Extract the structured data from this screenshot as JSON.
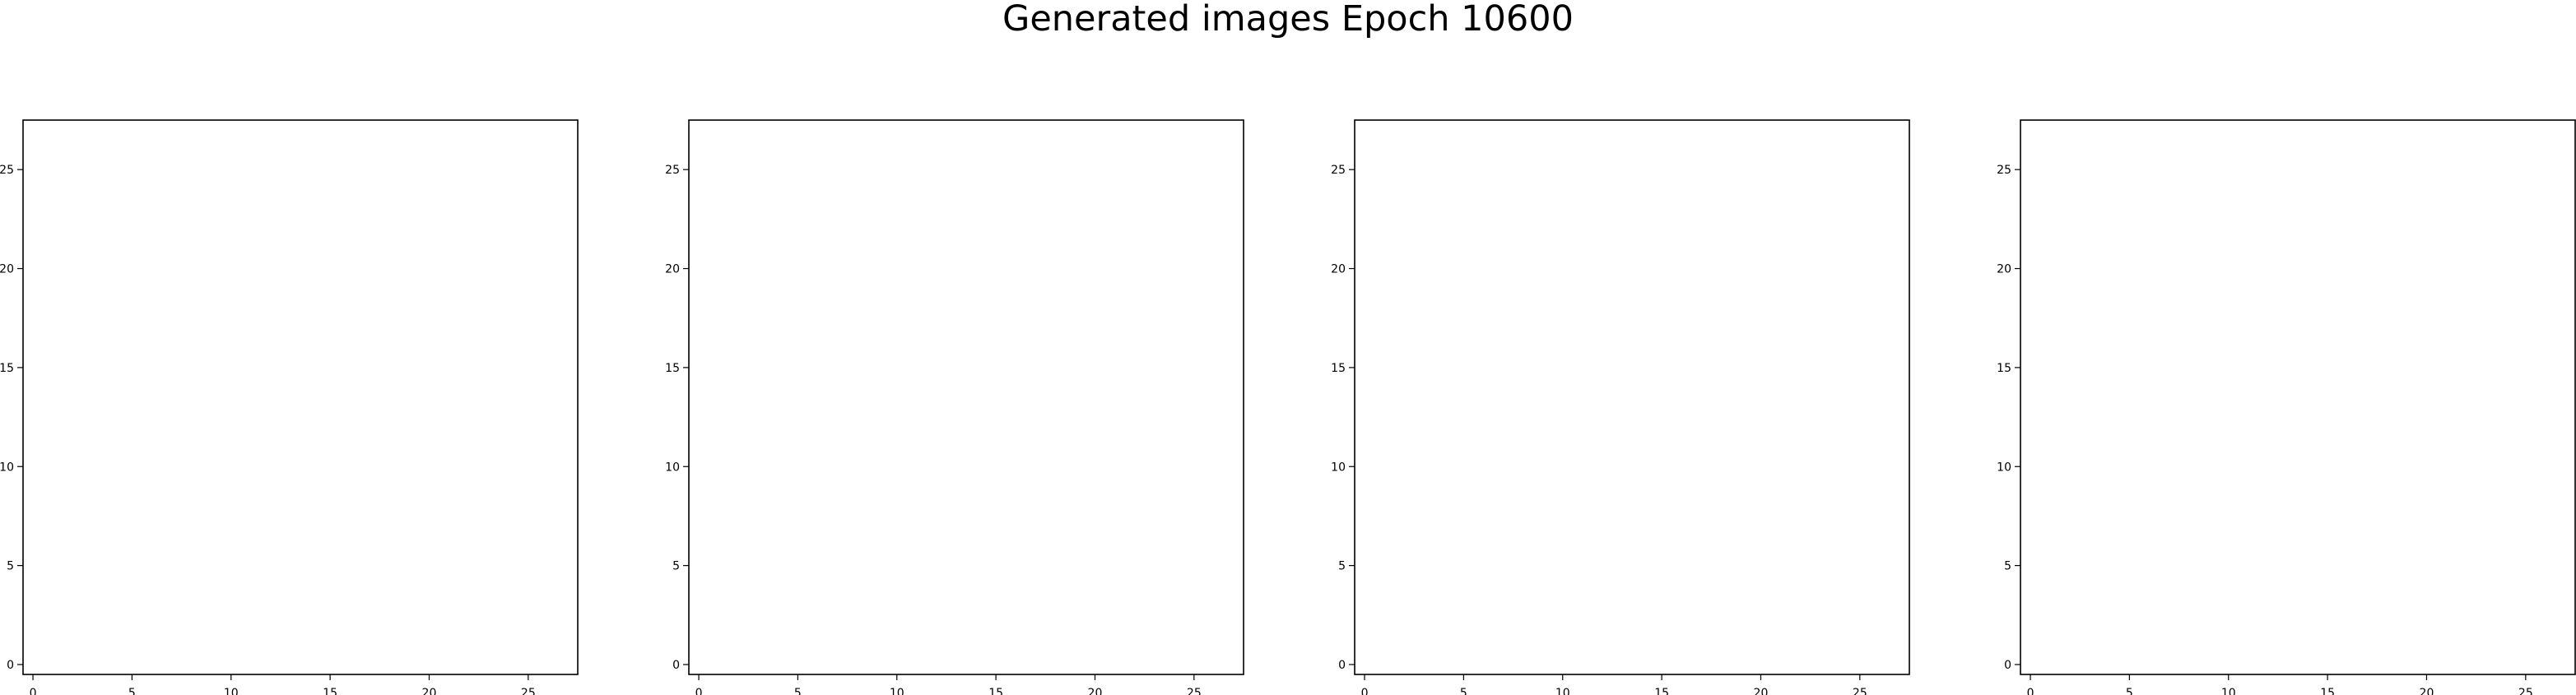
{
  "title": "Generated images Epoch 10600",
  "chart_data": [
    {
      "type": "heatmap",
      "style": "pastel",
      "seed": 11,
      "grid_size": [
        28,
        28
      ],
      "x_ticks": [
        "0",
        "5",
        "10",
        "15",
        "20",
        "25"
      ],
      "y_ticks": [
        "0",
        "5",
        "10",
        "15",
        "20",
        "25"
      ],
      "xlim": [
        -0.5,
        27.5
      ],
      "ylim": [
        27.5,
        -0.5
      ],
      "dominant_colors": [
        "#c9b6e6",
        "#b7a3dd",
        "#d7c8ee",
        "#e2a8e8"
      ]
    },
    {
      "type": "heatmap",
      "style": "green-brown",
      "seed": 23,
      "grid_size": [
        28,
        28
      ],
      "x_ticks": [
        "0",
        "5",
        "10",
        "15",
        "20",
        "25"
      ],
      "y_ticks": [
        "0",
        "5",
        "10",
        "15",
        "20",
        "25"
      ],
      "xlim": [
        -0.5,
        27.5
      ],
      "ylim": [
        27.5,
        -0.5
      ],
      "dominant_colors": [
        "#1f7a0a",
        "#0f5a06",
        "#8a8a12",
        "#b36b10"
      ]
    },
    {
      "type": "heatmap",
      "style": "green",
      "seed": 37,
      "grid_size": [
        28,
        28
      ],
      "x_ticks": [
        "0",
        "5",
        "10",
        "15",
        "20",
        "25"
      ],
      "y_ticks": [
        "0",
        "5",
        "10",
        "15",
        "20",
        "25"
      ],
      "xlim": [
        -0.5,
        27.5
      ],
      "ylim": [
        27.5,
        -0.5
      ],
      "dominant_colors": [
        "#0e6a0a",
        "#0b5d08",
        "#13780e",
        "#2a9b24"
      ]
    },
    {
      "type": "heatmap",
      "style": "pastel-light",
      "seed": 53,
      "grid_size": [
        28,
        28
      ],
      "x_ticks": [
        "0",
        "5",
        "10",
        "15",
        "20",
        "25"
      ],
      "y_ticks": [
        "0",
        "5",
        "10",
        "15",
        "20",
        "25"
      ],
      "xlim": [
        -0.5,
        27.5
      ],
      "ylim": [
        27.5,
        -0.5
      ],
      "dominant_colors": [
        "#e6dbef",
        "#d9c6ea",
        "#c9e9df",
        "#f0c7e4"
      ]
    }
  ]
}
